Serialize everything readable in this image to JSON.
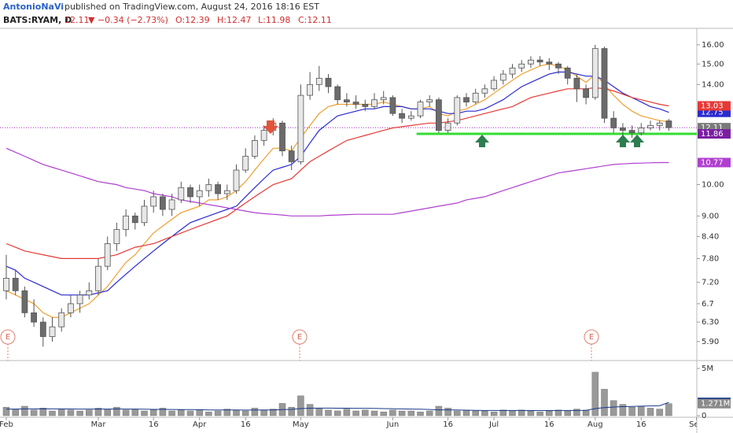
{
  "chart_data": {
    "type": "candlestick",
    "header": {
      "author": "AntonioNaVi",
      "published": "published on TradingView.com, August 24, 2016 18:16 EST",
      "symbol": "BATS:RYAM, D",
      "last": "12.11",
      "change": "▼ −0.34 (−2.73%)",
      "open": "O:12.39",
      "high": "H:12.47",
      "low": "L:11.98",
      "close": "C:12.11"
    },
    "log_scale": true,
    "grid": false,
    "categories": [
      "Feb",
      null,
      null,
      null,
      null,
      null,
      null,
      null,
      null,
      null,
      "Mar",
      null,
      null,
      null,
      null,
      null,
      "16",
      null,
      null,
      null,
      null,
      "Apr",
      null,
      null,
      null,
      null,
      "16",
      null,
      null,
      null,
      null,
      null,
      "May",
      null,
      null,
      null,
      null,
      null,
      null,
      null,
      null,
      null,
      "Jun",
      null,
      null,
      null,
      null,
      null,
      "16",
      null,
      null,
      null,
      null,
      "Jul",
      null,
      null,
      null,
      null,
      null,
      "16",
      null,
      null,
      null,
      null,
      "Aug",
      null,
      null,
      null,
      null,
      "16",
      null,
      null,
      null,
      null,
      null,
      "Sep"
    ],
    "ohlc": [
      [
        7.0,
        7.9,
        6.8,
        7.3
      ],
      [
        7.3,
        7.5,
        6.9,
        7.0
      ],
      [
        7.0,
        7.1,
        6.4,
        6.5
      ],
      [
        6.5,
        6.8,
        6.2,
        6.3
      ],
      [
        6.3,
        6.4,
        5.8,
        6.0
      ],
      [
        6.0,
        6.4,
        5.9,
        6.2
      ],
      [
        6.2,
        6.6,
        6.1,
        6.5
      ],
      [
        6.5,
        6.9,
        6.4,
        6.7
      ],
      [
        6.7,
        7.0,
        6.5,
        6.9
      ],
      [
        6.9,
        7.2,
        6.8,
        7.0
      ],
      [
        7.0,
        7.8,
        6.9,
        7.6
      ],
      [
        7.6,
        8.4,
        7.5,
        8.2
      ],
      [
        8.2,
        8.8,
        8.0,
        8.6
      ],
      [
        8.6,
        9.2,
        8.4,
        9.0
      ],
      [
        9.0,
        9.1,
        8.6,
        8.8
      ],
      [
        8.8,
        9.5,
        8.7,
        9.3
      ],
      [
        9.3,
        9.8,
        9.1,
        9.6
      ],
      [
        9.6,
        9.7,
        9.0,
        9.2
      ],
      [
        9.2,
        9.7,
        9.0,
        9.5
      ],
      [
        9.5,
        10.1,
        9.4,
        9.9
      ],
      [
        9.9,
        10.0,
        9.4,
        9.6
      ],
      [
        9.6,
        10.0,
        9.3,
        9.8
      ],
      [
        9.8,
        10.2,
        9.6,
        10.0
      ],
      [
        10.0,
        10.1,
        9.5,
        9.7
      ],
      [
        9.7,
        10.0,
        9.5,
        9.8
      ],
      [
        9.8,
        10.7,
        9.7,
        10.5
      ],
      [
        10.5,
        11.3,
        10.4,
        11.0
      ],
      [
        11.0,
        11.8,
        10.9,
        11.6
      ],
      [
        11.6,
        12.2,
        11.4,
        12.0
      ],
      [
        12.0,
        12.5,
        11.8,
        12.3
      ],
      [
        12.3,
        12.4,
        11.0,
        11.2
      ],
      [
        11.2,
        11.4,
        10.5,
        10.8
      ],
      [
        10.8,
        14.0,
        10.7,
        13.5
      ],
      [
        13.5,
        14.6,
        13.3,
        14.0
      ],
      [
        14.0,
        14.9,
        13.7,
        14.3
      ],
      [
        14.3,
        14.5,
        13.6,
        13.9
      ],
      [
        13.9,
        14.0,
        13.1,
        13.3
      ],
      [
        13.3,
        13.6,
        13.0,
        13.2
      ],
      [
        13.2,
        13.5,
        12.9,
        13.1
      ],
      [
        13.1,
        13.3,
        12.8,
        13.0
      ],
      [
        13.0,
        13.6,
        12.9,
        13.3
      ],
      [
        13.3,
        13.7,
        13.1,
        13.4
      ],
      [
        13.4,
        13.5,
        12.6,
        12.7
      ],
      [
        12.7,
        12.9,
        12.3,
        12.5
      ],
      [
        12.5,
        12.8,
        12.4,
        12.6
      ],
      [
        12.6,
        13.3,
        12.5,
        13.2
      ],
      [
        13.2,
        13.5,
        13.0,
        13.3
      ],
      [
        13.3,
        13.4,
        11.9,
        12.0
      ],
      [
        12.0,
        12.5,
        11.9,
        12.3
      ],
      [
        12.3,
        13.5,
        12.2,
        13.4
      ],
      [
        13.4,
        13.6,
        13.0,
        13.2
      ],
      [
        13.2,
        13.8,
        13.1,
        13.6
      ],
      [
        13.6,
        14.0,
        13.4,
        13.8
      ],
      [
        13.8,
        14.4,
        13.7,
        14.2
      ],
      [
        14.2,
        14.7,
        14.0,
        14.5
      ],
      [
        14.5,
        15.0,
        14.3,
        14.8
      ],
      [
        14.8,
        15.2,
        14.6,
        15.0
      ],
      [
        15.0,
        15.4,
        14.8,
        15.2
      ],
      [
        15.2,
        15.4,
        14.9,
        15.1
      ],
      [
        15.1,
        15.3,
        14.7,
        15.0
      ],
      [
        15.0,
        15.1,
        14.5,
        14.8
      ],
      [
        14.8,
        14.9,
        14.0,
        14.3
      ],
      [
        14.3,
        14.5,
        13.2,
        13.8
      ],
      [
        13.8,
        14.0,
        13.1,
        13.4
      ],
      [
        13.4,
        16.0,
        13.3,
        15.8
      ],
      [
        15.8,
        15.9,
        12.3,
        12.5
      ],
      [
        12.5,
        12.8,
        11.9,
        12.1
      ],
      [
        12.1,
        12.3,
        11.8,
        12.0
      ],
      [
        12.0,
        12.2,
        11.7,
        11.9
      ],
      [
        11.9,
        12.3,
        11.8,
        12.1
      ],
      [
        12.1,
        12.4,
        12.0,
        12.2
      ],
      [
        12.2,
        12.4,
        12.0,
        12.3
      ],
      [
        12.39,
        12.47,
        11.98,
        12.11
      ],
      null,
      null,
      null
    ],
    "up_color": "#e8e8e8",
    "down_color": "#6b6b6b",
    "edge_color": "#555555",
    "series": [
      {
        "color": "#f0a030",
        "values": [
          7.0,
          6.9,
          6.8,
          6.7,
          6.5,
          6.4,
          6.4,
          6.5,
          6.6,
          6.7,
          6.9,
          7.1,
          7.4,
          7.7,
          7.9,
          8.2,
          8.5,
          8.7,
          8.9,
          9.1,
          9.2,
          9.3,
          9.5,
          9.5,
          9.6,
          9.8,
          10.1,
          10.5,
          10.9,
          11.3,
          11.3,
          11.2,
          11.7,
          12.2,
          12.7,
          13.0,
          13.1,
          13.1,
          13.1,
          13.1,
          13.1,
          13.2,
          13.1,
          13.0,
          12.9,
          12.9,
          13.0,
          12.7,
          12.6,
          12.8,
          12.9,
          13.1,
          13.3,
          13.6,
          13.9,
          14.2,
          14.5,
          14.7,
          14.9,
          15.0,
          14.9,
          14.7,
          14.4,
          14.1,
          14.5,
          14.0,
          13.5,
          13.1,
          12.8,
          12.6,
          12.5,
          12.4,
          12.35,
          null,
          null,
          null
        ]
      },
      {
        "color": "#2a2ad0",
        "values": [
          7.6,
          7.5,
          7.3,
          7.2,
          7.1,
          7.0,
          6.9,
          6.9,
          6.9,
          6.9,
          6.95,
          7.0,
          7.2,
          7.4,
          7.6,
          7.8,
          8.0,
          8.2,
          8.4,
          8.6,
          8.8,
          8.9,
          9.0,
          9.1,
          9.2,
          9.3,
          9.6,
          9.9,
          10.2,
          10.5,
          10.6,
          10.7,
          11.0,
          11.5,
          12.0,
          12.3,
          12.6,
          12.7,
          12.8,
          12.9,
          12.9,
          13.0,
          13.0,
          13.0,
          12.9,
          12.9,
          12.9,
          12.8,
          12.7,
          12.7,
          12.8,
          12.8,
          12.9,
          13.1,
          13.3,
          13.6,
          13.9,
          14.1,
          14.3,
          14.5,
          14.6,
          14.6,
          14.5,
          14.4,
          14.4,
          14.2,
          13.9,
          13.6,
          13.4,
          13.2,
          13.0,
          12.9,
          12.75,
          null,
          null,
          null
        ],
        "tag": 12.75
      },
      {
        "color": "#e53935",
        "values": [
          8.2,
          8.1,
          8.0,
          7.95,
          7.9,
          7.85,
          7.8,
          7.8,
          7.8,
          7.8,
          7.8,
          7.85,
          7.9,
          8.0,
          8.1,
          8.15,
          8.2,
          8.3,
          8.4,
          8.5,
          8.6,
          8.7,
          8.8,
          8.9,
          9.0,
          9.2,
          9.4,
          9.6,
          9.8,
          10.0,
          10.1,
          10.2,
          10.5,
          10.8,
          11.0,
          11.2,
          11.4,
          11.6,
          11.7,
          11.8,
          11.9,
          12.0,
          12.1,
          12.15,
          12.2,
          12.25,
          12.3,
          12.3,
          12.35,
          12.4,
          12.5,
          12.6,
          12.7,
          12.8,
          12.9,
          13.0,
          13.2,
          13.4,
          13.5,
          13.6,
          13.7,
          13.8,
          13.8,
          13.8,
          13.85,
          13.8,
          13.7,
          13.55,
          13.4,
          13.3,
          13.2,
          13.1,
          13.03,
          null,
          null,
          null
        ],
        "tag": 13.03
      },
      {
        "color": "#b040d0",
        "values": [
          11.3,
          11.15,
          11.0,
          10.85,
          10.7,
          10.6,
          10.5,
          10.4,
          10.3,
          10.2,
          10.1,
          10.05,
          10.0,
          9.9,
          9.85,
          9.8,
          9.7,
          9.65,
          9.6,
          9.5,
          9.45,
          9.4,
          9.35,
          9.3,
          9.25,
          9.2,
          9.15,
          9.1,
          9.07,
          9.05,
          9.03,
          9.0,
          9.0,
          9.0,
          9.0,
          9.02,
          9.03,
          9.04,
          9.05,
          9.05,
          9.05,
          9.05,
          9.05,
          9.1,
          9.15,
          9.2,
          9.25,
          9.3,
          9.35,
          9.4,
          9.5,
          9.55,
          9.6,
          9.7,
          9.8,
          9.9,
          10.0,
          10.1,
          10.2,
          10.3,
          10.4,
          10.45,
          10.5,
          10.55,
          10.6,
          10.65,
          10.7,
          10.72,
          10.74,
          10.75,
          10.76,
          10.77,
          10.77,
          null,
          null,
          null
        ],
        "tag": 10.77
      }
    ],
    "last_price": {
      "value": 12.11,
      "color": "#7a7a7a"
    },
    "support": {
      "value": 11.86,
      "color": "#33dd33"
    },
    "ylim": [
      5.55,
      16.82
    ],
    "yticks": [
      {
        "value": 5.9,
        "label": "5.90"
      },
      {
        "value": 6.3,
        "label": "6.30"
      },
      6.7,
      {
        "value": 7.2,
        "label": "7.20"
      },
      {
        "value": 7.8,
        "label": "7.80"
      },
      {
        "value": 8.4,
        "label": "8.40"
      },
      {
        "value": 9,
        "label": "9.00"
      },
      {
        "value": 10,
        "label": "10.00"
      },
      {
        "value": 14,
        "label": "14.00"
      },
      {
        "value": 15,
        "label": "15.00"
      },
      {
        "value": 16,
        "label": "16.00"
      }
    ],
    "volume": {
      "color": "#999999",
      "values": [
        0.9,
        0.7,
        1.0,
        0.6,
        0.8,
        0.5,
        0.7,
        0.6,
        0.5,
        0.6,
        0.8,
        0.7,
        0.9,
        0.6,
        0.7,
        0.5,
        0.6,
        0.8,
        0.5,
        0.6,
        0.5,
        0.6,
        0.4,
        0.5,
        0.7,
        0.6,
        0.5,
        0.8,
        0.6,
        0.7,
        1.3,
        0.9,
        2.1,
        1.2,
        0.8,
        0.6,
        0.5,
        0.7,
        0.5,
        0.6,
        0.5,
        0.4,
        0.6,
        0.5,
        0.5,
        0.4,
        0.5,
        1.0,
        0.8,
        0.5,
        0.6,
        0.5,
        0.5,
        0.4,
        0.6,
        0.5,
        0.6,
        0.5,
        0.4,
        0.5,
        0.6,
        0.5,
        0.7,
        0.6,
        4.6,
        2.8,
        1.6,
        1.2,
        0.9,
        1.0,
        0.8,
        0.7,
        1.271,
        null,
        null,
        null
      ],
      "value_labels": [
        null,
        null,
        null,
        null,
        null,
        null,
        null,
        null,
        null,
        null,
        null,
        null,
        null,
        null,
        null,
        null,
        null,
        null,
        null,
        null,
        null,
        null,
        null,
        null,
        null,
        null,
        null,
        null,
        null,
        null,
        null,
        null,
        null,
        null,
        null,
        null,
        null,
        null,
        null,
        null,
        null,
        null,
        null,
        null,
        null,
        null,
        null,
        null,
        null,
        null,
        null,
        null,
        null,
        null,
        null,
        null,
        null,
        null,
        null,
        null,
        null,
        null,
        null,
        null,
        null,
        null,
        null,
        null,
        null,
        null,
        null,
        null,
        "1.271M",
        null,
        null,
        null
      ],
      "ma": {
        "color": "#1a3a8a",
        "values": [
          0.7,
          0.7,
          0.72,
          0.72,
          0.73,
          0.72,
          0.72,
          0.71,
          0.7,
          0.7,
          0.7,
          0.7,
          0.71,
          0.7,
          0.7,
          0.68,
          0.67,
          0.67,
          0.66,
          0.65,
          0.64,
          0.63,
          0.61,
          0.6,
          0.6,
          0.6,
          0.59,
          0.6,
          0.6,
          0.61,
          0.65,
          0.67,
          0.75,
          0.79,
          0.8,
          0.8,
          0.79,
          0.79,
          0.78,
          0.78,
          0.77,
          0.75,
          0.74,
          0.72,
          0.7,
          0.68,
          0.66,
          0.62,
          0.62,
          0.6,
          0.58,
          0.56,
          0.55,
          0.55,
          0.55,
          0.55,
          0.55,
          0.54,
          0.54,
          0.54,
          0.55,
          0.55,
          0.55,
          0.56,
          0.75,
          0.86,
          0.92,
          0.96,
          0.98,
          1.01,
          1.03,
          1.05,
          1.41,
          null,
          null,
          null
        ],
        "tag": {
          "value": 1.41,
          "label": "1.41M"
        }
      },
      "ylim": [
        0,
        5.5
      ],
      "yticks": [
        0,
        {
          "value": 5,
          "label": "5M"
        }
      ]
    }
  }
}
